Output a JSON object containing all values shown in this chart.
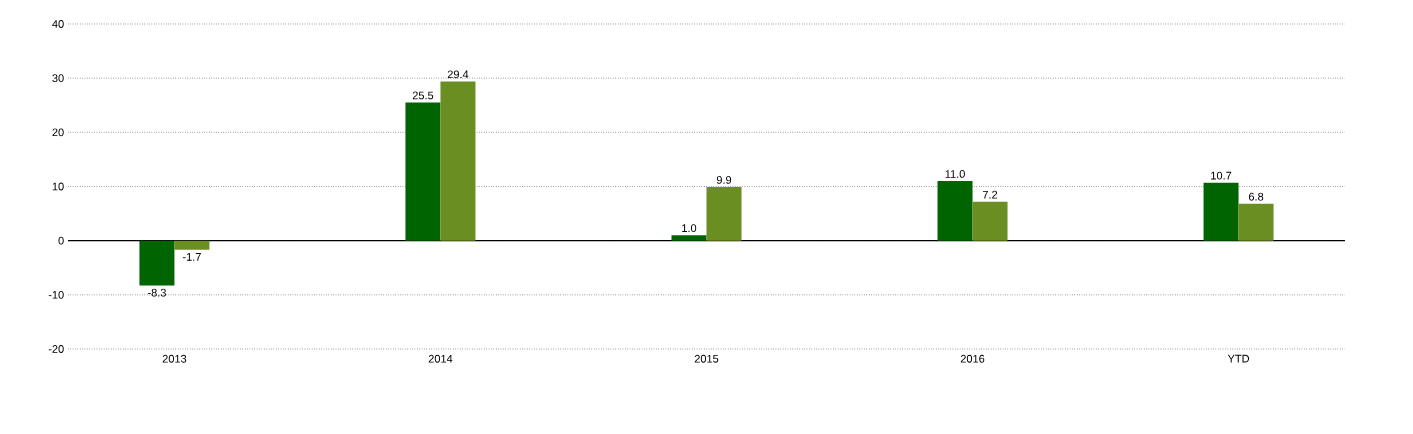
{
  "chart_data": {
    "type": "bar",
    "categories": [
      "2013",
      "2014",
      "2015",
      "2016",
      "YTD"
    ],
    "series": [
      {
        "color": "#006400",
        "values": [
          -8.3,
          25.5,
          1.0,
          11.0,
          10.7
        ],
        "value_labels": [
          "-8.3",
          "25.5",
          "1.0",
          "11.0",
          "10.7"
        ]
      },
      {
        "color": "#6b8e23",
        "values": [
          -1.7,
          29.4,
          9.9,
          7.2,
          6.8
        ],
        "value_labels": [
          "-1.7",
          "29.4",
          "9.9",
          "7.2",
          "6.8"
        ]
      }
    ],
    "ylim": [
      -20,
      40
    ],
    "yticks": [
      -20,
      -10,
      0,
      10,
      20,
      30,
      40
    ],
    "grid": "y"
  }
}
